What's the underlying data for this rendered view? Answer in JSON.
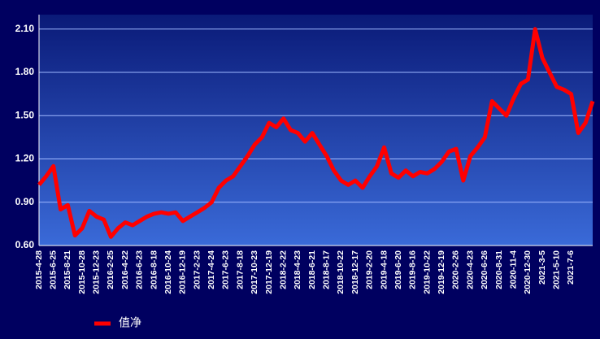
{
  "chart_data": {
    "type": "line",
    "categories": [
      "2015-4-28",
      null,
      "2015-6-25",
      null,
      "2015-8-21",
      null,
      "2015-10-28",
      null,
      "2015-12-23",
      null,
      "2016-2-25",
      null,
      "2016-4-22",
      null,
      "2016-6-23",
      null,
      "2016-8-18",
      null,
      "2016-10-24",
      null,
      "2016-12-19",
      null,
      "2017-2-23",
      null,
      "2017-4-24",
      null,
      "2017-6-23",
      null,
      "2017-8-18",
      null,
      "2017-10-23",
      null,
      "2017-12-19",
      null,
      "2018-2-22",
      null,
      "2018-4-23",
      null,
      "2018-6-21",
      null,
      "2018-8-17",
      null,
      "2018-10-22",
      null,
      "2018-12-17",
      null,
      "2019-2-20",
      null,
      "2019-4-18",
      null,
      "2019-6-20",
      null,
      "2019-8-16",
      null,
      "2019-10-22",
      null,
      "2019-12-19",
      null,
      "2020-2-26",
      null,
      "2020-4-23",
      null,
      "2020-6-26",
      null,
      "2020-8-31",
      null,
      "2020-11-4",
      null,
      "2020-12-30",
      null,
      "2021-3-5",
      null,
      "2021-5-10",
      null,
      "2021-7-6",
      null,
      null,
      null
    ],
    "series": [
      {
        "name": "值净",
        "color": "#ff0000",
        "values": [
          1.02,
          1.08,
          1.15,
          0.85,
          0.88,
          0.67,
          0.72,
          0.84,
          0.8,
          0.78,
          0.66,
          0.72,
          0.76,
          0.74,
          0.77,
          0.8,
          0.82,
          0.83,
          0.82,
          0.83,
          0.77,
          0.8,
          0.83,
          0.86,
          0.9,
          1.0,
          1.05,
          1.08,
          1.15,
          1.22,
          1.3,
          1.35,
          1.45,
          1.42,
          1.48,
          1.4,
          1.38,
          1.32,
          1.38,
          1.3,
          1.22,
          1.12,
          1.05,
          1.02,
          1.05,
          1.0,
          1.08,
          1.15,
          1.28,
          1.1,
          1.07,
          1.12,
          1.08,
          1.11,
          1.1,
          1.13,
          1.18,
          1.25,
          1.27,
          1.05,
          1.22,
          1.28,
          1.35,
          1.6,
          1.55,
          1.5,
          1.62,
          1.72,
          1.75,
          2.1,
          1.9,
          1.8,
          1.7,
          1.68,
          1.65,
          1.38,
          1.45,
          1.6
        ]
      }
    ],
    "ylim": [
      0.6,
      2.2
    ],
    "yticks": [
      {
        "value": 0.6,
        "label": "0.60"
      },
      {
        "value": 0.9,
        "label": "0.90"
      },
      {
        "value": 1.2,
        "label": "1.20"
      },
      {
        "value": 1.5,
        "label": "1.50"
      },
      {
        "value": 1.8,
        "label": "1.80"
      },
      {
        "value": 2.1,
        "label": "2.10"
      }
    ],
    "grid": true,
    "legend": "bottom-left"
  }
}
